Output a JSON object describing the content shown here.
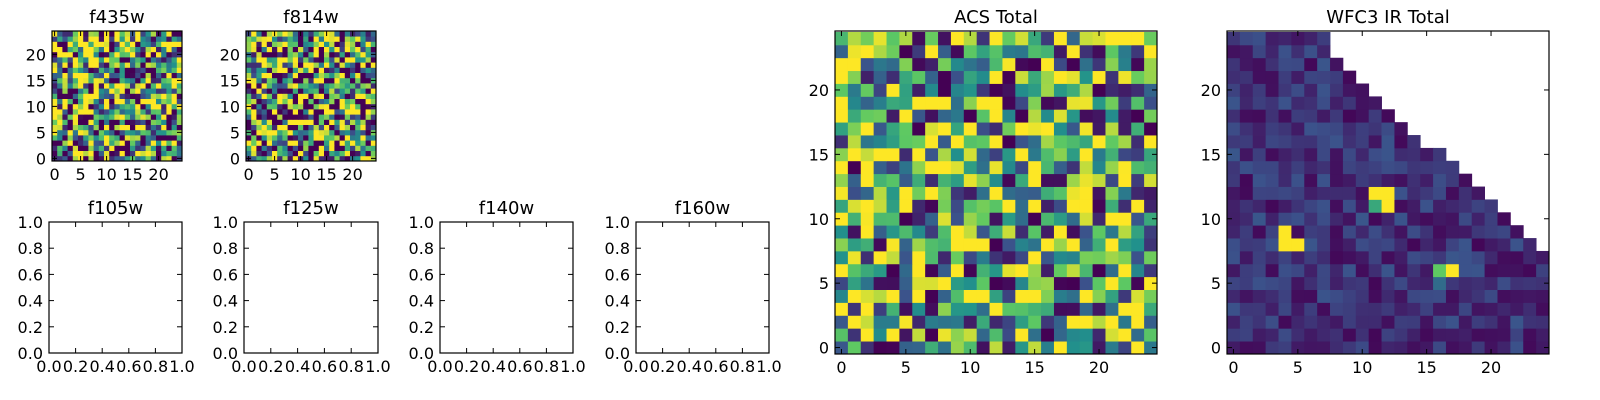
{
  "colormap": [
    "#440154",
    "#3b528b",
    "#21918c",
    "#5ec962",
    "#fde725"
  ],
  "chart_data": [
    {
      "type": "heatmap",
      "title": "f435w",
      "grid_n": 25,
      "seed": 11,
      "bias": 0.52,
      "contrast": 1.6,
      "xticks": [
        0,
        5,
        10,
        15,
        20
      ],
      "yticks": [
        0,
        5,
        10,
        15,
        20
      ]
    },
    {
      "type": "heatmap",
      "title": "f814w",
      "grid_n": 25,
      "seed": 23,
      "bias": 0.52,
      "contrast": 1.6,
      "xticks": [
        0,
        5,
        10,
        15,
        20
      ],
      "yticks": [
        0,
        5,
        10,
        15,
        20
      ]
    },
    {
      "type": "empty",
      "title": "f105w",
      "xticks": [
        "0.0",
        "0.2",
        "0.4",
        "0.6",
        "0.8",
        "1.0"
      ],
      "yticks": [
        "0.0",
        "0.2",
        "0.4",
        "0.6",
        "0.8",
        "1.0"
      ]
    },
    {
      "type": "empty",
      "title": "f125w",
      "xticks": [
        "0.0",
        "0.2",
        "0.4",
        "0.6",
        "0.8",
        "1.0"
      ],
      "yticks": [
        "0.0",
        "0.2",
        "0.4",
        "0.6",
        "0.8",
        "1.0"
      ]
    },
    {
      "type": "empty",
      "title": "f140w",
      "xticks": [
        "0.0",
        "0.2",
        "0.4",
        "0.6",
        "0.8",
        "1.0"
      ],
      "yticks": [
        "0.0",
        "0.2",
        "0.4",
        "0.6",
        "0.8",
        "1.0"
      ]
    },
    {
      "type": "empty",
      "title": "f160w",
      "xticks": [
        "0.0",
        "0.2",
        "0.4",
        "0.6",
        "0.8",
        "1.0"
      ],
      "yticks": [
        "0.0",
        "0.2",
        "0.4",
        "0.6",
        "0.8",
        "1.0"
      ]
    },
    {
      "type": "heatmap",
      "title": "ACS Total",
      "grid_n": 25,
      "seed": 37,
      "bias": 0.58,
      "contrast": 1.25,
      "xticks": [
        0,
        5,
        10,
        15,
        20
      ],
      "yticks": [
        0,
        5,
        10,
        15,
        20
      ]
    },
    {
      "type": "heatmap",
      "title": "WFC3 IR Total",
      "grid_n": 25,
      "seed": 53,
      "bias": 0.14,
      "contrast": 0.25,
      "masked": "upper-right triangle",
      "hot_pixels": [
        {
          "x": 11,
          "y": 12,
          "v": 1.0
        },
        {
          "x": 12,
          "y": 12,
          "v": 1.0
        },
        {
          "x": 11,
          "y": 11,
          "v": 0.6
        },
        {
          "x": 12,
          "y": 11,
          "v": 1.0
        },
        {
          "x": 4,
          "y": 9,
          "v": 1.0
        },
        {
          "x": 4,
          "y": 8,
          "v": 1.0
        },
        {
          "x": 5,
          "y": 8,
          "v": 1.0
        },
        {
          "x": 16,
          "y": 6,
          "v": 0.75
        },
        {
          "x": 17,
          "y": 6,
          "v": 1.0
        },
        {
          "x": 16,
          "y": 5,
          "v": 0.35
        }
      ],
      "xticks": [
        0,
        5,
        10,
        15,
        20
      ],
      "yticks": [
        0,
        5,
        10,
        15,
        20
      ]
    }
  ]
}
